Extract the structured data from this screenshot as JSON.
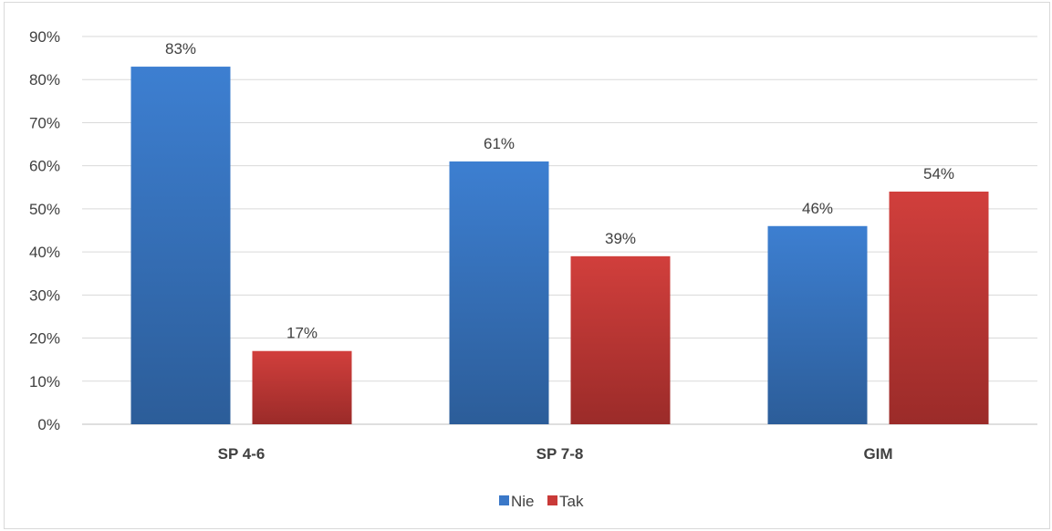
{
  "chart_data": {
    "type": "bar",
    "categories": [
      "SP 4-6",
      "SP 7-8",
      "GIM"
    ],
    "series": [
      {
        "name": "Nie",
        "values": [
          83,
          61,
          46
        ],
        "color": "#3a78c8"
      },
      {
        "name": "Tak",
        "values": [
          17,
          39,
          54
        ],
        "color": "#c93a38"
      }
    ],
    "data_labels": [
      [
        "83%",
        "61%",
        "46%"
      ],
      [
        "17%",
        "39%",
        "54%"
      ]
    ],
    "y_ticks": [
      "0%",
      "10%",
      "20%",
      "30%",
      "40%",
      "50%",
      "60%",
      "70%",
      "80%",
      "90%"
    ],
    "ylim": [
      0,
      90
    ],
    "grid": true,
    "legend_position": "bottom",
    "title": "",
    "xlabel": "",
    "ylabel": ""
  }
}
